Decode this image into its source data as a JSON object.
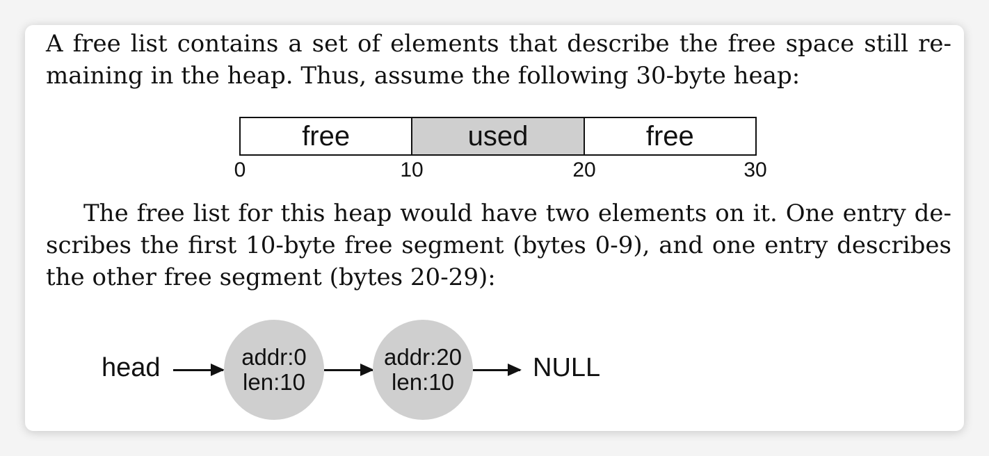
{
  "paragraph1": {
    "lines": [
      "A free list contains a set of elements that describe the free space still re-",
      "maining in the heap. Thus, assume the following 30-byte heap:"
    ]
  },
  "heap_diagram": {
    "segments": [
      {
        "label": "free",
        "state": "free"
      },
      {
        "label": "used",
        "state": "used"
      },
      {
        "label": "free",
        "state": "free"
      }
    ],
    "ticks": [
      "0",
      "10",
      "20",
      "30"
    ],
    "used_color": "#cfcfcf"
  },
  "paragraph2": {
    "lines": [
      "The free list for this heap would have two elements on it. One entry de-",
      "scribes the first 10-byte free segment (bytes 0-9), and one entry describes",
      "the other free segment (bytes 20-29):"
    ]
  },
  "list_diagram": {
    "head_label": "head",
    "nodes": [
      {
        "addr": "addr:0",
        "len": "len:10"
      },
      {
        "addr": "addr:20",
        "len": "len:10"
      }
    ],
    "tail_label": "NULL",
    "node_color": "#cfcfcf"
  }
}
